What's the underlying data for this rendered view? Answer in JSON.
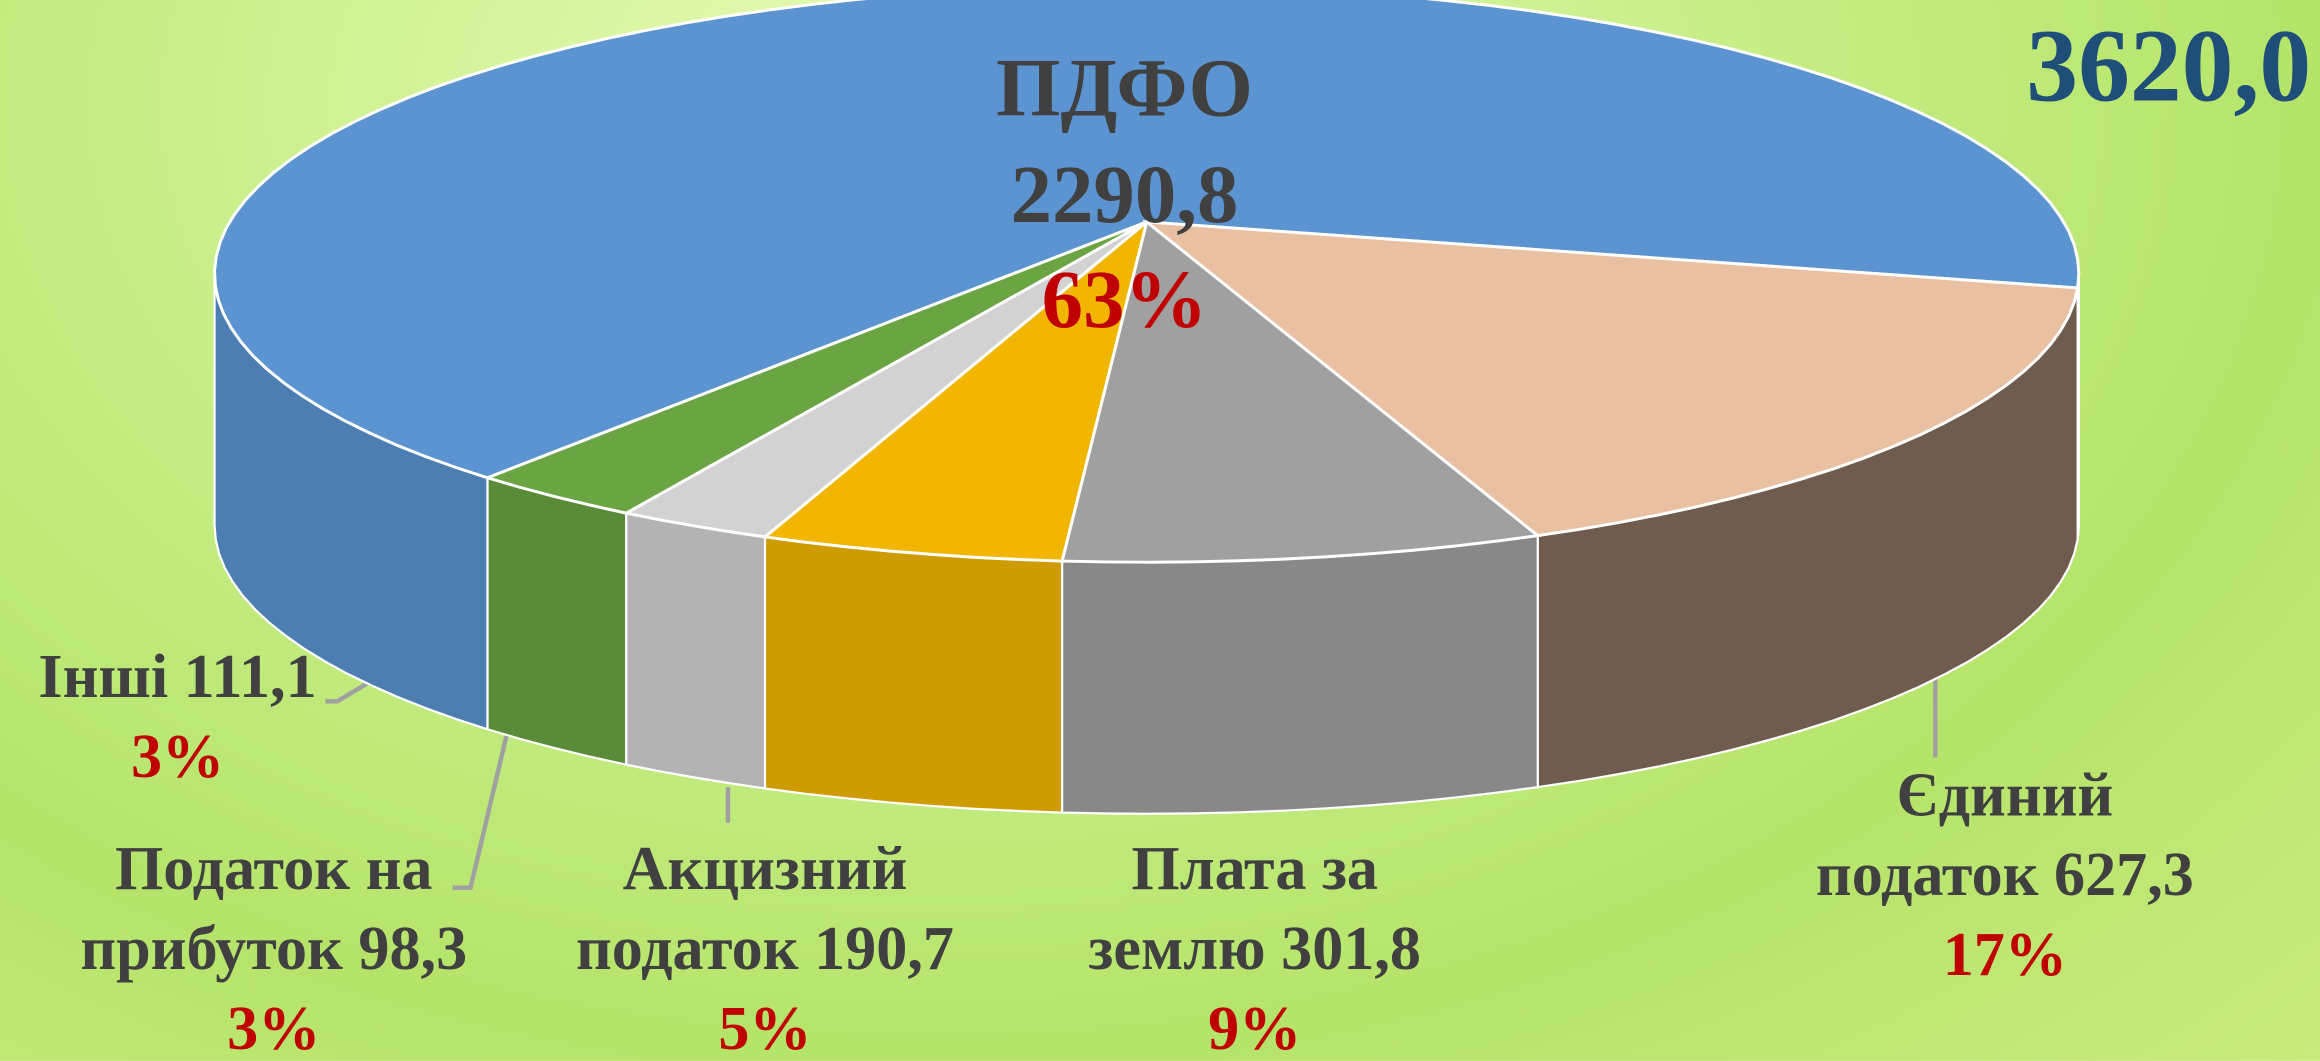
{
  "chart_data": {
    "type": "pie3d",
    "total": 3620.0,
    "total_label": "3620,0",
    "categories": [
      "ПДФО",
      "Єдиний податок",
      "Плата за землю",
      "Акцизний податок",
      "Податок на прибуток",
      "Інші"
    ],
    "series": [
      {
        "name": "ПДФО",
        "values": [
          2290.8,
          627.3,
          301.8,
          190.7,
          98.3,
          111.1
        ],
        "value_labels": [
          "2290,8",
          "627,3",
          "301,8",
          "190,7",
          "98,3",
          "111,1"
        ],
        "colors": [
          "#5b94d0",
          "#eac0a3",
          "#a0a0a0",
          "#f2b600",
          "#d2d2d2",
          "#6aa443"
        ]
      }
    ],
    "percents": [
      63,
      17,
      9,
      5,
      3,
      3
    ],
    "percent_labels": [
      "63%",
      "17%",
      "9%",
      "5%",
      "3%",
      "3%"
    ]
  }
}
